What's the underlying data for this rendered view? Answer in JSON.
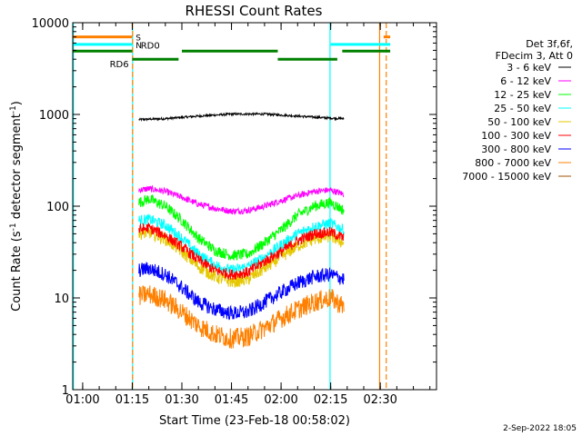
{
  "chart_data": {
    "type": "line",
    "title": "RHESSI Count Rates",
    "xlabel": "Start Time (23-Feb-18 00:58:02)",
    "ylabel_pre": "Count Rate (s",
    "ylabel_sup": "-1",
    "ylabel_post": " detector segment",
    "ylabel_sup2": "-1",
    "ylabel_close": ")",
    "y_scale": "log",
    "ylim": [
      1,
      10000
    ],
    "xlim_minutes": [
      57,
      167
    ],
    "x_ticks": [
      {
        "label": "01:00",
        "t": 60
      },
      {
        "label": "01:15",
        "t": 75
      },
      {
        "label": "01:30",
        "t": 90
      },
      {
        "label": "01:45",
        "t": 105
      },
      {
        "label": "02:00",
        "t": 120
      },
      {
        "label": "02:15",
        "t": 135
      },
      {
        "label": "02:30",
        "t": 150
      }
    ],
    "y_ticks": [
      {
        "label": "1",
        "v": 1
      },
      {
        "label": "10",
        "v": 10
      },
      {
        "label": "100",
        "v": 100
      },
      {
        "label": "1000",
        "v": 1000
      },
      {
        "label": "10000",
        "v": 10000
      }
    ],
    "legend_header": [
      "Det 3f,6f,",
      "FDecim 3, Att 0"
    ],
    "series": [
      {
        "name": "3 - 6 keV",
        "color": "#000000",
        "t": [
          77,
          85,
          95,
          105,
          115,
          125,
          133,
          139
        ],
        "values": [
          880,
          900,
          960,
          1010,
          1010,
          960,
          920,
          900
        ]
      },
      {
        "name": "6 - 12 keV",
        "color": "#ff00ff",
        "t": [
          77,
          80,
          85,
          90,
          95,
          100,
          105,
          110,
          115,
          120,
          125,
          130,
          135,
          139
        ],
        "values": [
          150,
          155,
          145,
          125,
          105,
          95,
          88,
          90,
          100,
          115,
          130,
          145,
          150,
          135
        ]
      },
      {
        "name": "12 - 25 keV",
        "color": "#00ff00",
        "t": [
          77,
          80,
          85,
          90,
          95,
          100,
          105,
          110,
          115,
          120,
          125,
          130,
          135,
          139
        ],
        "values": [
          110,
          120,
          100,
          70,
          45,
          33,
          29,
          30,
          40,
          55,
          80,
          100,
          110,
          90
        ]
      },
      {
        "name": "25 - 50 keV",
        "color": "#00ffff",
        "t": [
          77,
          80,
          85,
          90,
          95,
          100,
          105,
          110,
          115,
          120,
          125,
          130,
          135,
          139
        ],
        "values": [
          70,
          72,
          62,
          45,
          30,
          23,
          20,
          22,
          28,
          38,
          50,
          60,
          65,
          55
        ]
      },
      {
        "name": "50 - 100 keV",
        "color": "#e5c800",
        "t": [
          77,
          80,
          85,
          90,
          95,
          100,
          105,
          110,
          115,
          120,
          125,
          130,
          135,
          139
        ],
        "values": [
          50,
          52,
          44,
          32,
          22,
          17,
          15,
          16,
          21,
          28,
          37,
          44,
          47,
          40
        ]
      },
      {
        "name": "100 - 300 keV",
        "color": "#ff0000",
        "t": [
          77,
          80,
          85,
          90,
          95,
          100,
          105,
          110,
          115,
          120,
          125,
          130,
          135,
          139
        ],
        "values": [
          55,
          58,
          48,
          36,
          26,
          20,
          18,
          19,
          25,
          32,
          42,
          50,
          52,
          45
        ]
      },
      {
        "name": "300 - 800 keV",
        "color": "#0000ff",
        "t": [
          77,
          80,
          85,
          90,
          95,
          100,
          105,
          110,
          115,
          120,
          125,
          130,
          135,
          139
        ],
        "values": [
          20,
          21,
          18,
          13,
          9,
          7.5,
          6.8,
          7,
          9,
          11.5,
          14.5,
          17,
          18,
          16
        ]
      },
      {
        "name": "800 - 7000 keV",
        "color": "#ff8000",
        "t": [
          77,
          80,
          85,
          90,
          95,
          100,
          105,
          110,
          115,
          120,
          125,
          130,
          135,
          139
        ],
        "values": [
          10.5,
          11,
          9.5,
          7,
          5,
          4,
          3.6,
          3.8,
          4.7,
          6,
          7.5,
          9,
          10,
          8
        ]
      },
      {
        "name": "7000 - 15000 keV",
        "color": "#a05000",
        "t": [],
        "values": []
      }
    ],
    "attenuator_bars": [
      {
        "label": "S",
        "color": "#ff8000",
        "y": 7000,
        "label_t": 75.5,
        "segments": [
          [
            57,
            75
          ],
          [
            151,
            153
          ]
        ]
      },
      {
        "label": "N",
        "color": "#00ffff",
        "y": 5800,
        "label_t": 75.5,
        "segments": [
          [
            57,
            75
          ],
          [
            135,
            153
          ]
        ]
      }
    ],
    "decimation_bars": [
      {
        "label": "RD0",
        "y": 4900,
        "label_t": 77,
        "label_side": "right",
        "segments": [
          [
            57,
            75
          ],
          [
            90,
            119
          ],
          [
            138.5,
            153
          ]
        ]
      },
      {
        "label": "RD6",
        "y": 4000,
        "label_t": 74.5,
        "label_side": "left",
        "segments": [
          [
            75,
            89
          ],
          [
            119,
            137
          ]
        ]
      }
    ],
    "vertical_lines": [
      {
        "t": 57.2,
        "color": "#00ffff",
        "style": "solid"
      },
      {
        "t": 75.1,
        "color": "#00ffff",
        "style": "solid"
      },
      {
        "t": 75.1,
        "color": "#ff8000",
        "style": "dashed"
      },
      {
        "t": 134.8,
        "color": "#00ffff",
        "style": "solid"
      },
      {
        "t": 149.8,
        "color": "#ff8000",
        "style": "solid"
      },
      {
        "t": 151.8,
        "color": "#ff8000",
        "style": "dashed"
      }
    ]
  },
  "footer": {
    "date": "2-Sep-2022 18:05"
  }
}
